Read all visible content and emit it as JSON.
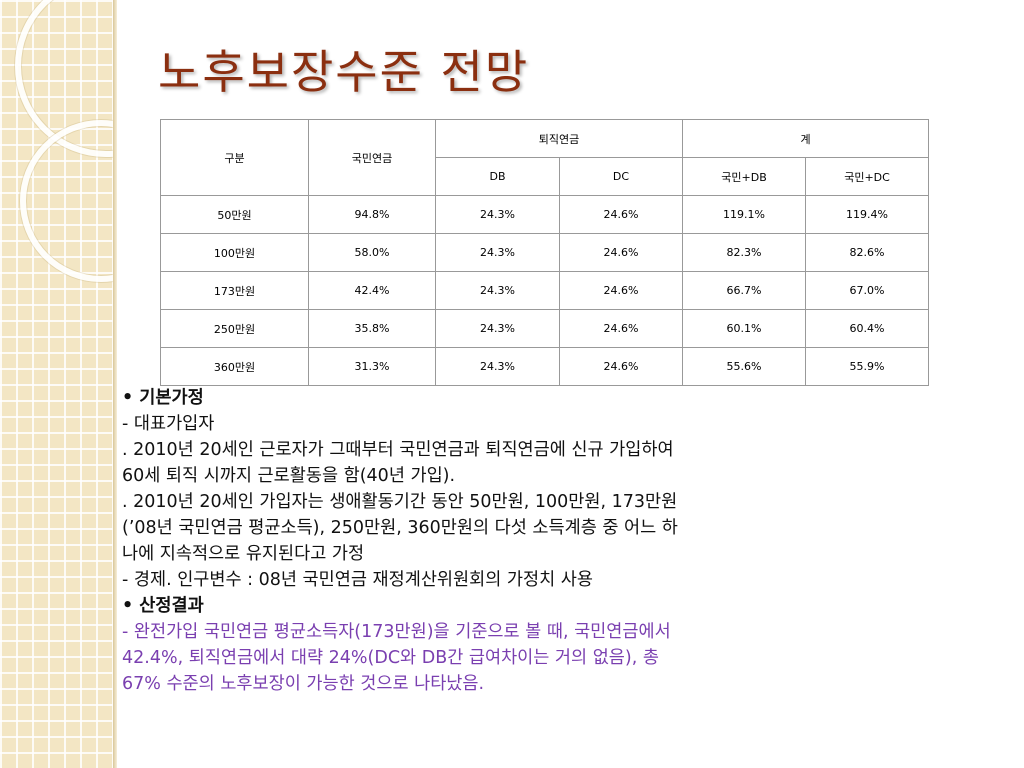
{
  "title": "노후보장수준 전망",
  "table": {
    "header1": {
      "category": "구분",
      "national_pension": "국민연금",
      "retirement_pension": "퇴직연금",
      "total": "계"
    },
    "header2": [
      "DB",
      "DC",
      "국민+DB",
      "국민+DC"
    ],
    "rows": [
      [
        "50만원",
        "94.8%",
        "24.3%",
        "24.6%",
        "119.1%",
        "119.4%"
      ],
      [
        "100만원",
        "58.0%",
        "24.3%",
        "24.6%",
        "82.3%",
        "82.6%"
      ],
      [
        "173만원",
        "42.4%",
        "24.3%",
        "24.6%",
        "66.7%",
        "67.0%"
      ],
      [
        "250만원",
        "35.8%",
        "24.3%",
        "24.6%",
        "60.1%",
        "60.4%"
      ],
      [
        "360만원",
        "31.3%",
        "24.3%",
        "24.6%",
        "55.6%",
        "55.9%"
      ]
    ]
  },
  "text": {
    "lines": [
      "• 기본가정",
      "- 대표가입자",
      ".  2010년 20세인 근로자가 그때부터 국민연금과 퇴직연금에 신규 가입하여",
      "60세 퇴직 시까지 근로활동을 함(40년 가입).",
      ".  2010년 20세인 가입자는 생애활동기간 동안 50만원, 100만원, 173만원",
      "(’08년 국민연금 평균소득), 250만원, 360만원의 다섯 소득계층 중 어느 하",
      "나에 지속적으로 유지된다고 가정",
      "- 경제. 인구변수 : 08년 국민연금 재정계산위원회의 가정치 사용",
      "• 산정결과",
      "- 완전가입 국민연금 평균소득자(173만원)을 기준으로 볼 때, 국민연금에서",
      "42.4%, 퇴직연금에서 대략 24%(DC와 DB간 급여차이는 거의 없음), 총",
      "67% 수준의 노후보장이 가능한 것으로 나타났음."
    ]
  }
}
